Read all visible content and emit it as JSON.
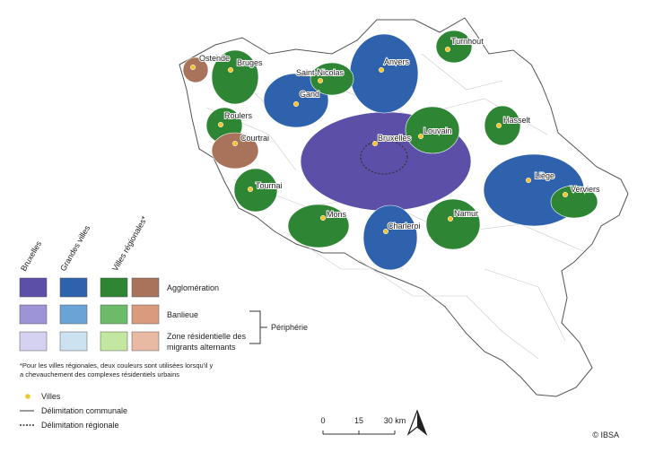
{
  "map": {
    "cities": [
      "Ostende",
      "Bruges",
      "Saint-Nicolas",
      "Anvers",
      "Turnhout",
      "Gand",
      "Roulers",
      "Courtrai",
      "Bruxelles",
      "Louvain",
      "Hasselt",
      "Liège",
      "Verviers",
      "Tournai",
      "Mons",
      "Charleroi",
      "Namur"
    ],
    "city_color": "#f2c431"
  },
  "legend": {
    "columns": [
      "Bruxelles",
      "Grandes villes",
      "Villes régionales*"
    ],
    "rows": [
      "Agglomération",
      "Banlieue",
      "Zone résidentielle des migrants alternants"
    ],
    "colors": [
      [
        "#5b4fa8",
        "#2e62ad",
        "#2e8534",
        "#a8735a"
      ],
      [
        "#9c94d4",
        "#6aa4d6",
        "#6dbb6a",
        "#d99b7c"
      ],
      [
        "#d5d1f0",
        "#cce2f1",
        "#c3e6a0",
        "#e9b9a3"
      ]
    ],
    "bracket": "Périphérie",
    "footnote": "*Pour les villes régionales, deux couleurs sont utilisées lorsqu'il y a chevauchement des complexes résidentiels urbains",
    "symbols": [
      "Villes",
      "Délimitation communale",
      "Délimitation régionale"
    ]
  },
  "scale": [
    "0",
    "15",
    "30 km"
  ],
  "credit": "© IBSA"
}
